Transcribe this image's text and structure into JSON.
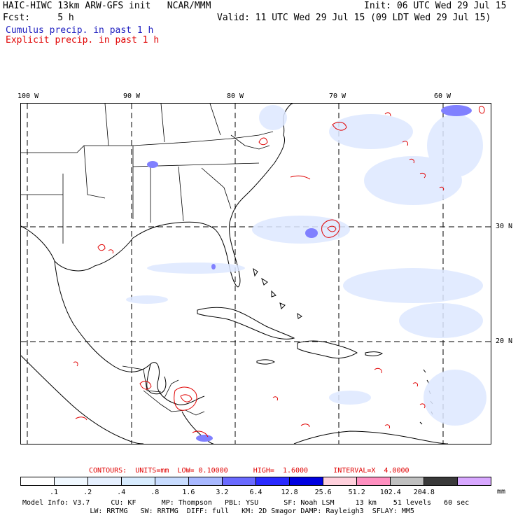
{
  "header": {
    "model_title": "HAIC-HIWC 13km ARW-GFS init   NCAR/MMM",
    "init_label": "Init: 06 UTC Wed 29 Jul 15",
    "fcst_label": "Fcst:     5 h",
    "valid_label": "Valid: 11 UTC Wed 29 Jul 15 (09 LDT Wed 29 Jul 15)",
    "cumulus_label": "Cumulus precip. in past 1 h",
    "explicit_label": "Explicit precip. in past 1 h"
  },
  "map": {
    "longitude_labels": [
      "100 W",
      "90 W",
      "80 W",
      "70 W",
      "60 W"
    ],
    "latitude_labels": [
      "30 N",
      "20 N"
    ]
  },
  "contours_line": "CONTOURS:  UNITS=mm  LOW= 0.10000      HIGH=  1.6000      INTERVAL=X  4.0000",
  "legend": {
    "units": "mm",
    "ticks": [
      ".1",
      ".2",
      ".4",
      ".8",
      "1.6",
      "3.2",
      "6.4",
      "12.8",
      "25.6",
      "51.2",
      "102.4",
      "204.8"
    ],
    "colors": [
      "#ffffff",
      "#f0f8ff",
      "#e6f0ff",
      "#d8ecff",
      "#c8dcff",
      "#a8b8ff",
      "#6a6aff",
      "#2a2aff",
      "#0000e0",
      "#ffd0dc",
      "#ff90c0",
      "#c0c0c0",
      "#3a3a3a",
      "#d8a8ff"
    ]
  },
  "footer": {
    "line1": "Model Info: V3.7     CU: KF      MP: Thompson   PBL: YSU      SF: Noah LSM     13 km    51 levels   60 sec",
    "line2": "                LW: RRTMG   SW: RRTMG  DIFF: full   KM: 2D Smagor DAMP: Rayleigh3  SFLAY: MM5"
  }
}
